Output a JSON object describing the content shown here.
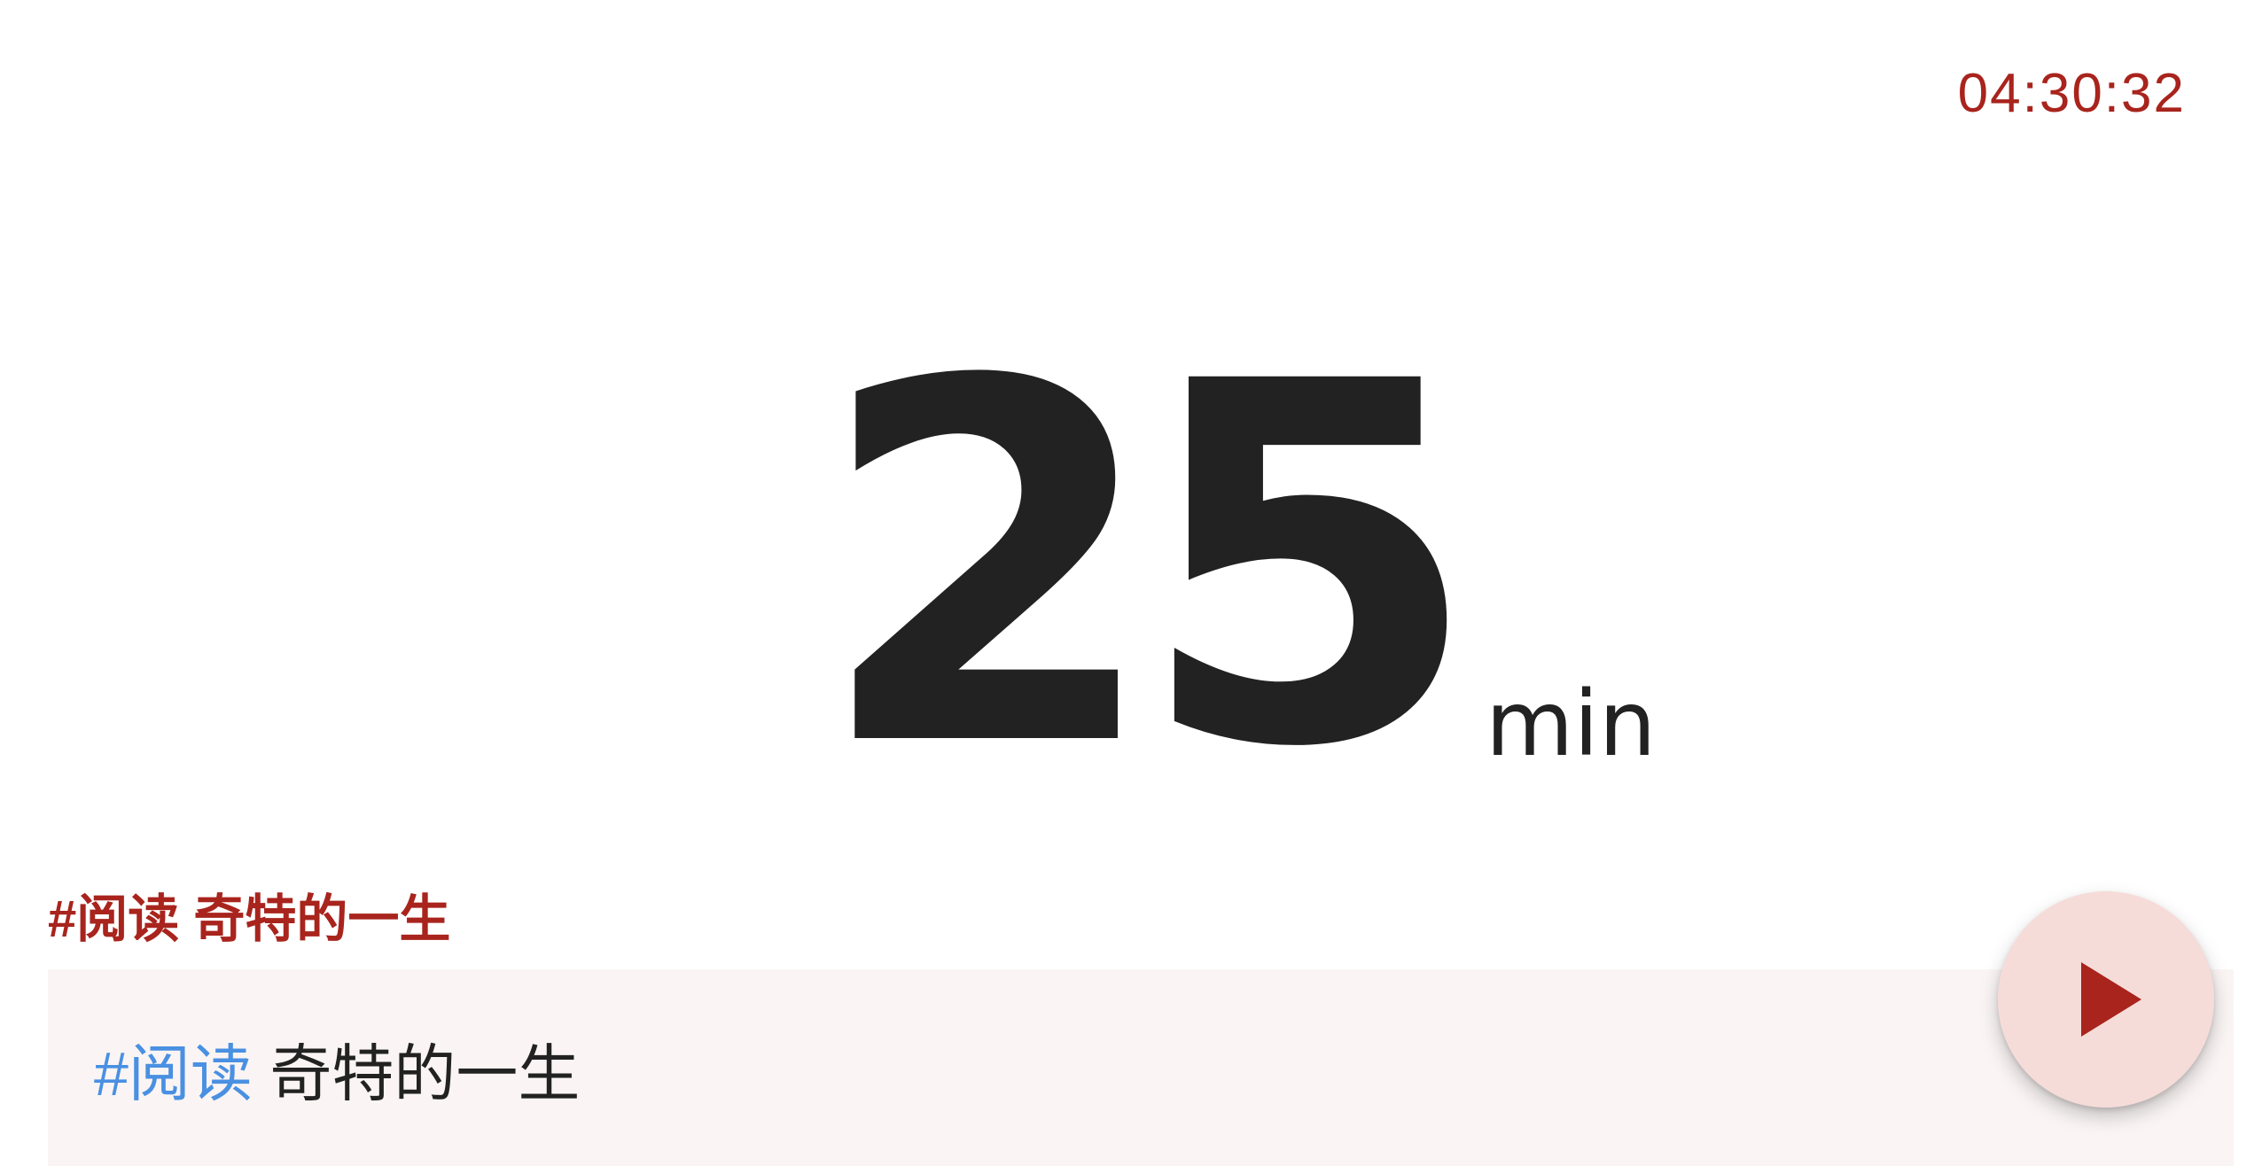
{
  "header": {
    "clock": "04:30:32"
  },
  "timer": {
    "duration": "25",
    "unit": "min"
  },
  "task": {
    "title": "#阅读 奇特的一生",
    "input_tag": "#阅读",
    "input_text": " 奇特的一生"
  },
  "controls": {
    "play_icon": "play-icon"
  },
  "colors": {
    "accent": "#a8241d",
    "tag": "#4a90e2",
    "text": "#222222",
    "panel": "#faf5f4",
    "play_bg": "#f6dcd9"
  }
}
